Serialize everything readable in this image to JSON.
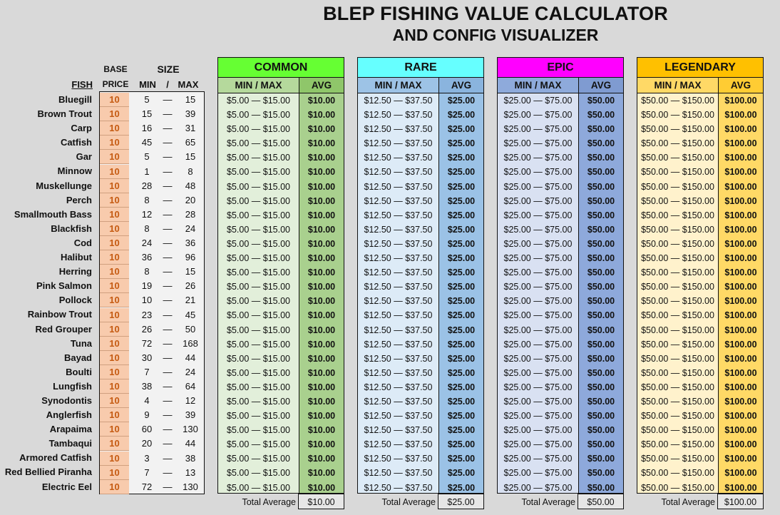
{
  "title": {
    "line1": "BLEP FISHING VALUE CALCULATOR",
    "line2": "AND CONFIG VISUALIZER"
  },
  "headers": {
    "fish": "FISH",
    "base": "BASE",
    "price": "PRICE",
    "size": "SIZE",
    "min": "MIN",
    "slash": "/",
    "max": "MAX"
  },
  "fish": [
    {
      "name": "Bluegill",
      "price": "10",
      "min": "5",
      "max": "15"
    },
    {
      "name": "Brown Trout",
      "price": "10",
      "min": "15",
      "max": "39"
    },
    {
      "name": "Carp",
      "price": "10",
      "min": "16",
      "max": "31"
    },
    {
      "name": "Catfish",
      "price": "10",
      "min": "45",
      "max": "65"
    },
    {
      "name": "Gar",
      "price": "10",
      "min": "5",
      "max": "15"
    },
    {
      "name": "Minnow",
      "price": "10",
      "min": "1",
      "max": "8"
    },
    {
      "name": "Muskellunge",
      "price": "10",
      "min": "28",
      "max": "48"
    },
    {
      "name": "Perch",
      "price": "10",
      "min": "8",
      "max": "20"
    },
    {
      "name": "Smallmouth Bass",
      "price": "10",
      "min": "12",
      "max": "28"
    },
    {
      "name": "Blackfish",
      "price": "10",
      "min": "8",
      "max": "24"
    },
    {
      "name": "Cod",
      "price": "10",
      "min": "24",
      "max": "36"
    },
    {
      "name": "Halibut",
      "price": "10",
      "min": "36",
      "max": "96"
    },
    {
      "name": "Herring",
      "price": "10",
      "min": "8",
      "max": "15"
    },
    {
      "name": "Pink Salmon",
      "price": "10",
      "min": "19",
      "max": "26"
    },
    {
      "name": "Pollock",
      "price": "10",
      "min": "10",
      "max": "21"
    },
    {
      "name": "Rainbow Trout",
      "price": "10",
      "min": "23",
      "max": "45"
    },
    {
      "name": "Red Grouper",
      "price": "10",
      "min": "26",
      "max": "50"
    },
    {
      "name": "Tuna",
      "price": "10",
      "min": "72",
      "max": "168"
    },
    {
      "name": "Bayad",
      "price": "10",
      "min": "30",
      "max": "44"
    },
    {
      "name": "Boulti",
      "price": "10",
      "min": "7",
      "max": "24"
    },
    {
      "name": "Lungfish",
      "price": "10",
      "min": "38",
      "max": "64"
    },
    {
      "name": "Synodontis",
      "price": "10",
      "min": "4",
      "max": "12"
    },
    {
      "name": "Anglerfish",
      "price": "10",
      "min": "9",
      "max": "39"
    },
    {
      "name": "Arapaima",
      "price": "10",
      "min": "60",
      "max": "130"
    },
    {
      "name": "Tambaqui",
      "price": "10",
      "min": "20",
      "max": "44"
    },
    {
      "name": "Armored Catfish",
      "price": "10",
      "min": "3",
      "max": "38"
    },
    {
      "name": "Red Bellied Piranha",
      "price": "10",
      "min": "7",
      "max": "13"
    },
    {
      "name": "Electric Eel",
      "price": "10",
      "min": "72",
      "max": "130"
    }
  ],
  "dash": "—",
  "rarities": [
    {
      "name": "COMMON",
      "range": "$5.00 — $15.00",
      "avg": "$10.00",
      "total": "$10.00",
      "colors": {
        "title": "#66ff33",
        "subL": "#b5d99c",
        "subR": "#8fc66a",
        "bodyL": "#e2efda",
        "bodyR": "#a9d08e"
      }
    },
    {
      "name": "RARE",
      "range": "$12.50 — $37.50",
      "avg": "$25.00",
      "total": "$25.00",
      "colors": {
        "title": "#66ffff",
        "subL": "#9dc3e6",
        "subR": "#8ab4de",
        "bodyL": "#ddebf7",
        "bodyR": "#9bc2e6"
      }
    },
    {
      "name": "EPIC",
      "range": "$25.00 — $75.00",
      "avg": "$50.00",
      "total": "$50.00",
      "colors": {
        "title": "#ff00ff",
        "subL": "#8eaadb",
        "subR": "#7f9bd1",
        "bodyL": "#d9e1f2",
        "bodyR": "#8ea9db"
      }
    },
    {
      "name": "LEGENDARY",
      "range": "$50.00 — $150.00",
      "avg": "$100.00",
      "total": "$100.00",
      "colors": {
        "title": "#ffc000",
        "subL": "#ffd966",
        "subR": "#ffcc33",
        "bodyL": "#fff2cc",
        "bodyR": "#ffd966"
      }
    }
  ],
  "panel_headers": {
    "minmax": "MIN / MAX",
    "avg": "AVG"
  },
  "total_label": "Total Average"
}
